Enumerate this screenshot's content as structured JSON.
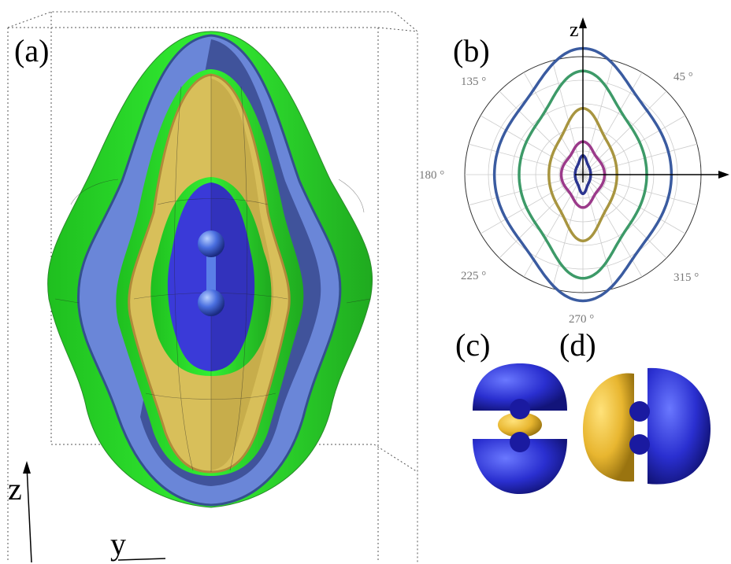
{
  "panel_a": {
    "label": "(a)",
    "axes": {
      "z": "z",
      "y": "y"
    }
  },
  "panel_b": {
    "label": "(b)",
    "axis_label": "z",
    "angle_labels": [
      "135 °",
      "45 °",
      "180 °",
      "225 °",
      "270 °",
      "315 °"
    ]
  },
  "panel_c": {
    "label": "(c)"
  },
  "panel_d": {
    "label": "(d)"
  }
}
